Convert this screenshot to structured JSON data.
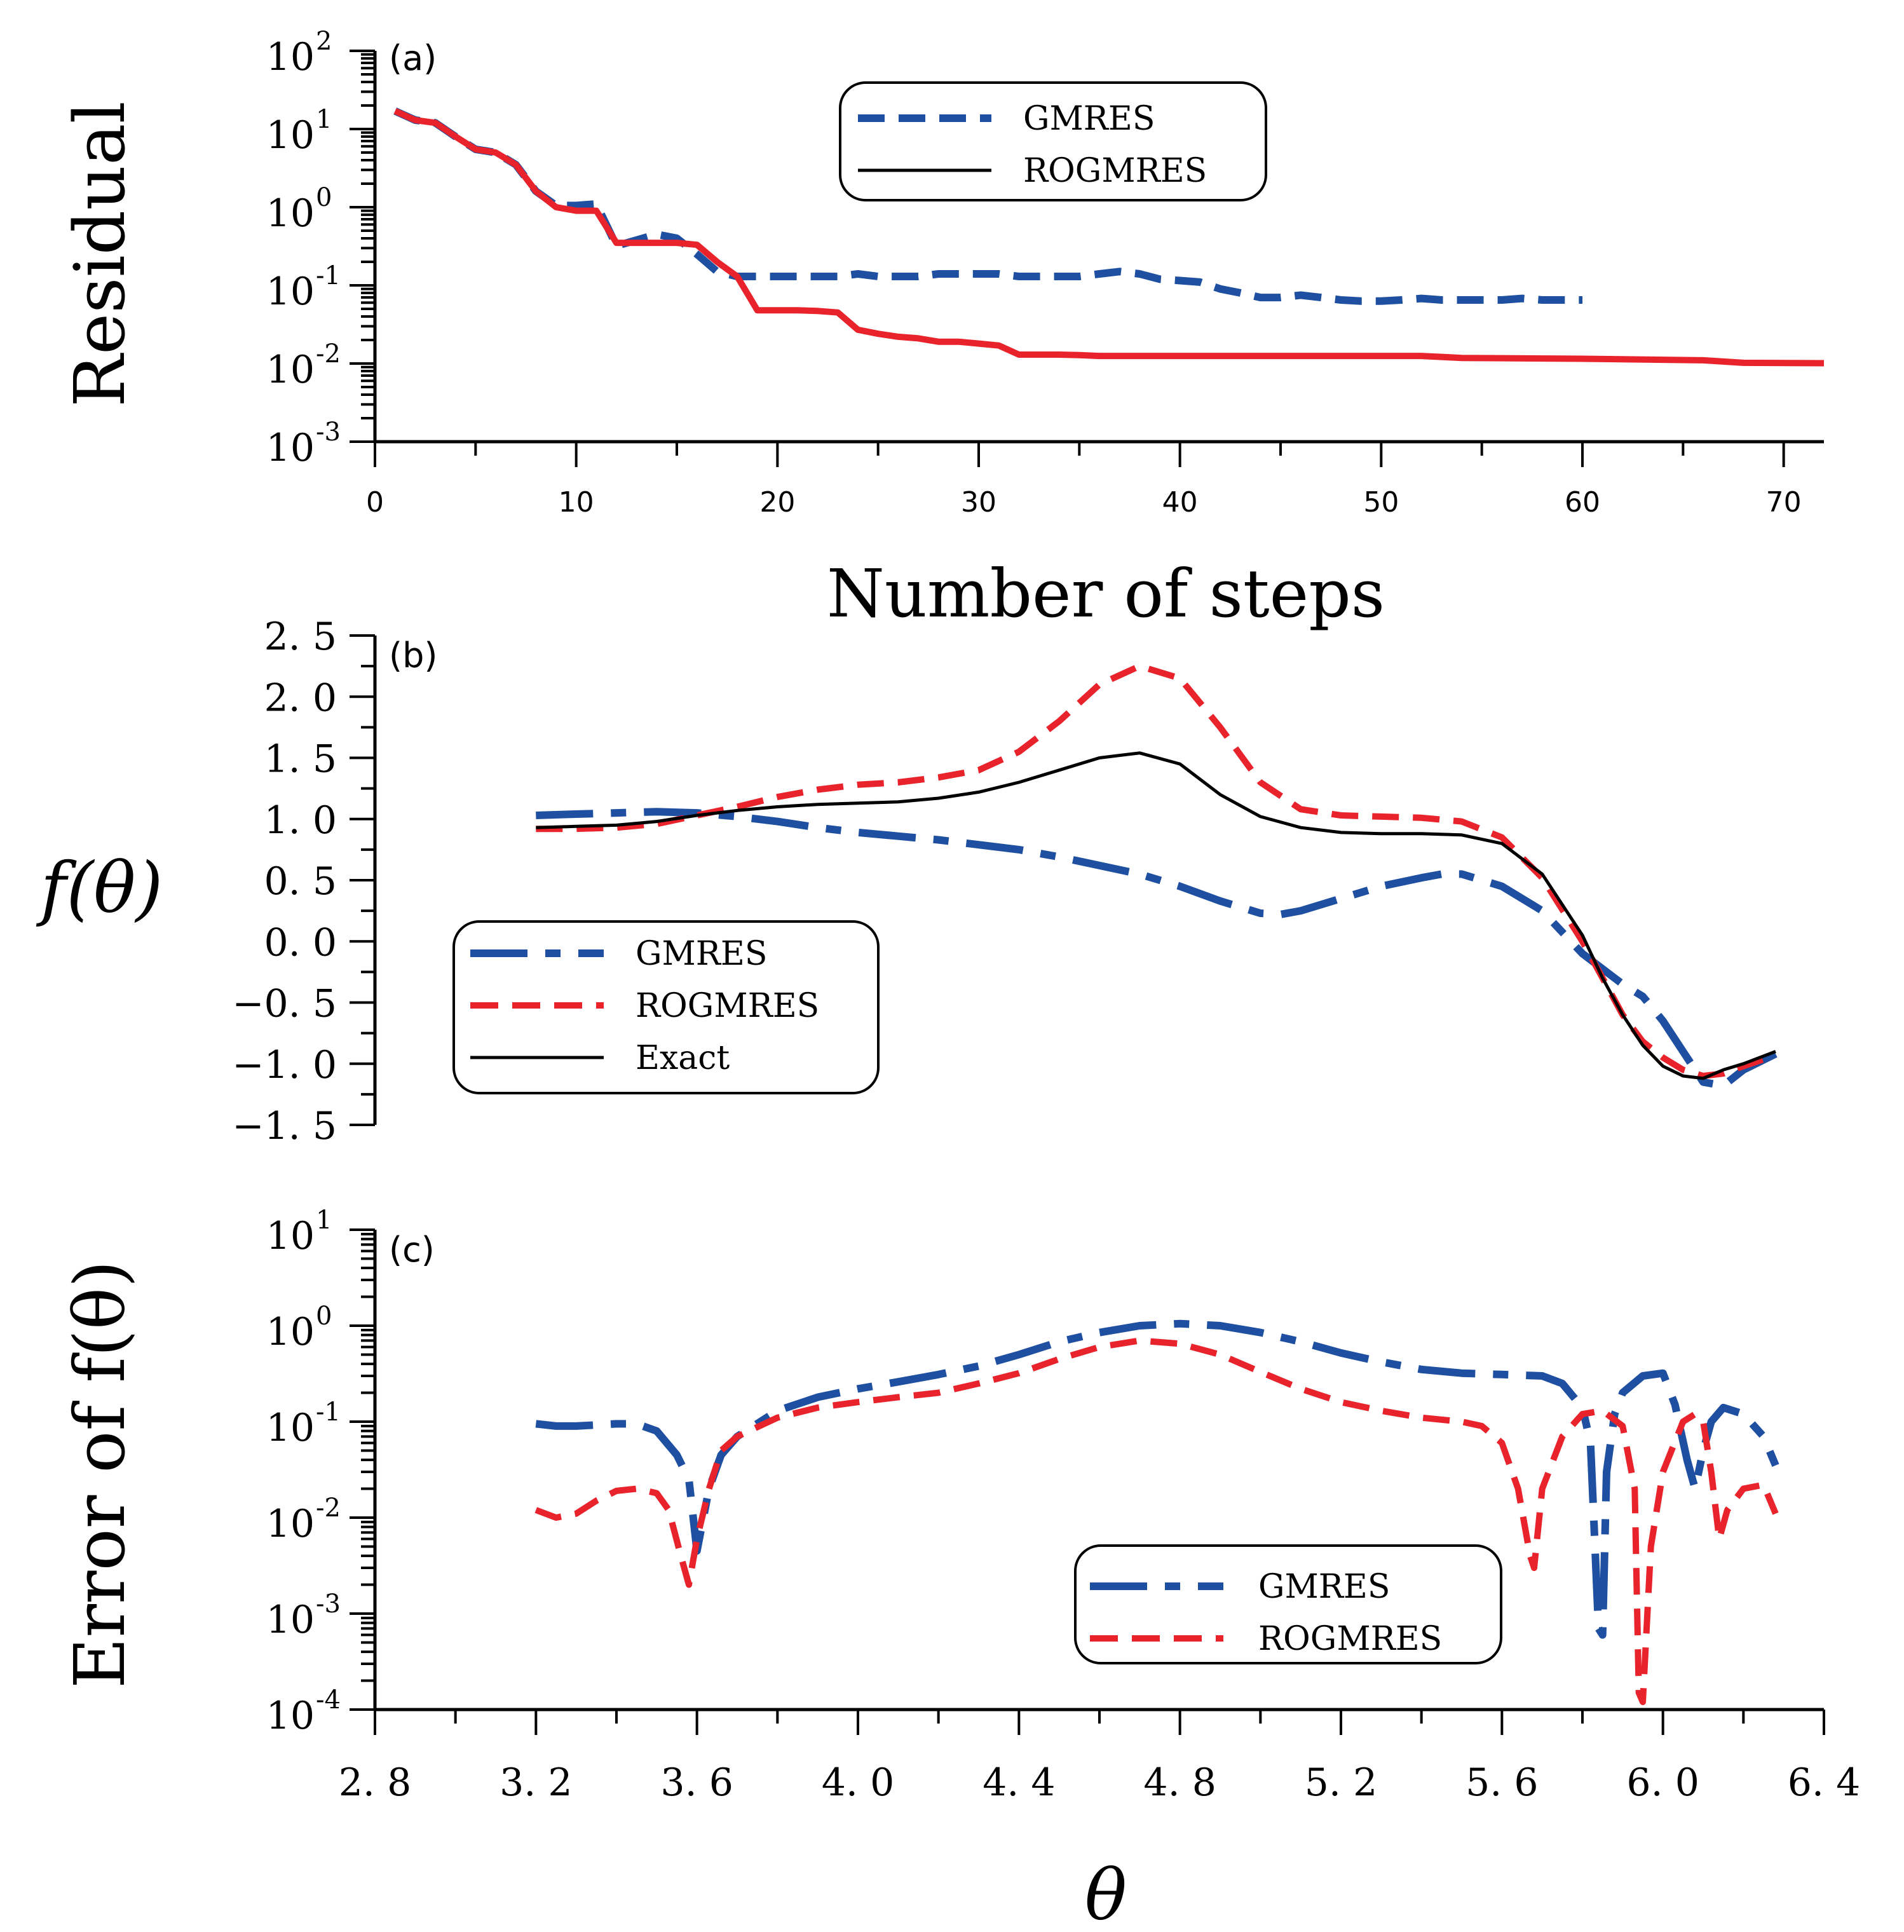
{
  "chart_data": [
    {
      "id": "a",
      "type": "line",
      "panel_label": "(a)",
      "xlabel": "Number of steps",
      "ylabel": "Residual",
      "yscale": "log",
      "xlim": [
        0,
        72
      ],
      "ylim_exp": [
        -3,
        2
      ],
      "x_ticks": [
        0,
        10,
        20,
        30,
        40,
        50,
        60,
        70
      ],
      "y_ticks": [
        {
          "base": "10",
          "exp": "-3",
          "v": -3
        },
        {
          "base": "10",
          "exp": "-2",
          "v": -2
        },
        {
          "base": "10",
          "exp": "-1",
          "v": -1
        },
        {
          "base": "10",
          "exp": "0",
          "v": 0
        },
        {
          "base": "10",
          "exp": "1",
          "v": 1
        },
        {
          "base": "10",
          "exp": "2",
          "v": 2
        }
      ],
      "legend": {
        "position": "top-center",
        "entries": [
          {
            "label": "GMRES",
            "series": "GMRES"
          },
          {
            "label": "ROGMRES",
            "series": "ROGMRES"
          }
        ]
      },
      "series": [
        {
          "name": "GMRES",
          "color": "#1f4fa0",
          "style": "dash",
          "x": [
            1,
            2,
            3,
            4,
            5,
            6,
            7,
            8,
            9,
            10,
            11,
            12,
            13,
            14,
            15,
            16,
            17,
            18,
            19,
            20,
            21,
            22,
            23,
            24,
            25,
            26,
            27,
            28,
            29,
            30,
            31,
            32,
            33,
            34,
            35,
            36,
            37,
            38,
            39,
            40,
            41,
            42,
            43,
            44,
            45,
            46,
            47,
            48,
            49,
            50,
            51,
            52,
            53,
            54,
            55,
            56,
            57,
            58,
            59,
            60
          ],
          "y": [
            17,
            13,
            12,
            8,
            5.5,
            5,
            3.5,
            1.6,
            1.05,
            1.05,
            1.1,
            0.32,
            0.38,
            0.45,
            0.4,
            0.25,
            0.15,
            0.13,
            0.13,
            0.13,
            0.13,
            0.13,
            0.13,
            0.14,
            0.13,
            0.13,
            0.13,
            0.14,
            0.14,
            0.14,
            0.14,
            0.13,
            0.13,
            0.13,
            0.13,
            0.14,
            0.15,
            0.14,
            0.12,
            0.115,
            0.11,
            0.09,
            0.08,
            0.07,
            0.07,
            0.075,
            0.07,
            0.065,
            0.063,
            0.063,
            0.065,
            0.068,
            0.065,
            0.065,
            0.065,
            0.065,
            0.068,
            0.065,
            0.065,
            0.065
          ]
        },
        {
          "name": "ROGMRES",
          "color": "#000000",
          "style": "solid",
          "x": [
            1,
            2,
            3,
            4,
            5,
            6,
            7,
            8,
            9,
            10,
            11,
            12,
            13,
            14,
            15,
            16,
            17,
            18,
            19,
            20,
            21,
            22,
            23,
            24,
            25,
            26,
            27,
            28,
            29,
            30,
            31,
            32,
            33,
            34,
            35,
            36,
            40,
            45,
            50,
            52,
            54,
            56,
            60,
            66,
            68,
            72
          ],
          "y": [
            17,
            13,
            12,
            8,
            5.5,
            5,
            3.5,
            1.6,
            1.0,
            0.9,
            0.9,
            0.35,
            0.35,
            0.35,
            0.35,
            0.33,
            0.2,
            0.13,
            0.048,
            0.048,
            0.048,
            0.047,
            0.045,
            0.027,
            0.024,
            0.022,
            0.021,
            0.019,
            0.019,
            0.018,
            0.017,
            0.013,
            0.013,
            0.013,
            0.0128,
            0.0125,
            0.0125,
            0.0125,
            0.0125,
            0.0125,
            0.0118,
            0.0117,
            0.0115,
            0.011,
            0.0102,
            0.0101
          ]
        }
      ]
    },
    {
      "id": "b",
      "type": "line",
      "panel_label": "(b)",
      "xlabel": "",
      "ylabel": "f(θ)",
      "xlim": [
        2.8,
        6.4
      ],
      "ylim": [
        -1.5,
        2.5
      ],
      "y_ticks": [
        "2. 5",
        "2. 0",
        "1. 5",
        "1. 0",
        "0. 5",
        "0. 0",
        "−0. 5",
        "−1. 0",
        "−1. 5"
      ],
      "y_tick_values": [
        2.5,
        2.0,
        1.5,
        1.0,
        0.5,
        0.0,
        -0.5,
        -1.0,
        -1.5
      ],
      "legend": {
        "position": "lower-left",
        "entries": [
          {
            "label": "GMRES",
            "series": "GMRES"
          },
          {
            "label": "ROGMRES",
            "series": "ROGMRES"
          },
          {
            "label": "Exact",
            "series": "Exact"
          }
        ]
      },
      "series": [
        {
          "name": "GMRES",
          "color": "#1f4fa0",
          "style": "longdash",
          "x": [
            3.2,
            3.3,
            3.4,
            3.5,
            3.6,
            3.7,
            3.8,
            3.9,
            4.0,
            4.1,
            4.2,
            4.3,
            4.4,
            4.5,
            4.6,
            4.7,
            4.8,
            4.9,
            5.0,
            5.05,
            5.1,
            5.2,
            5.3,
            5.4,
            5.45,
            5.5,
            5.6,
            5.7,
            5.8,
            5.9,
            5.95,
            6.0,
            6.05,
            6.1,
            6.15,
            6.2,
            6.28
          ],
          "y": [
            1.03,
            1.04,
            1.05,
            1.06,
            1.05,
            1.02,
            0.98,
            0.93,
            0.89,
            0.86,
            0.83,
            0.79,
            0.75,
            0.69,
            0.62,
            0.55,
            0.45,
            0.33,
            0.23,
            0.22,
            0.25,
            0.35,
            0.45,
            0.52,
            0.55,
            0.55,
            0.45,
            0.25,
            -0.1,
            -0.35,
            -0.45,
            -0.65,
            -0.9,
            -1.15,
            -1.18,
            -1.05,
            -0.92
          ]
        },
        {
          "name": "ROGMRES",
          "color": "#e8232b",
          "style": "dash",
          "x": [
            3.2,
            3.3,
            3.4,
            3.5,
            3.6,
            3.7,
            3.8,
            3.9,
            4.0,
            4.1,
            4.2,
            4.3,
            4.4,
            4.5,
            4.6,
            4.7,
            4.8,
            4.9,
            5.0,
            5.1,
            5.2,
            5.3,
            5.4,
            5.5,
            5.6,
            5.7,
            5.8,
            5.85,
            5.9,
            5.95,
            6.0,
            6.05,
            6.1,
            6.15,
            6.2,
            6.28
          ],
          "y": [
            0.92,
            0.92,
            0.93,
            0.96,
            1.03,
            1.1,
            1.18,
            1.24,
            1.28,
            1.3,
            1.34,
            1.4,
            1.55,
            1.8,
            2.1,
            2.25,
            2.15,
            1.75,
            1.3,
            1.08,
            1.03,
            1.02,
            1.01,
            0.98,
            0.85,
            0.52,
            0.0,
            -0.3,
            -0.6,
            -0.82,
            -0.95,
            -1.05,
            -1.1,
            -1.08,
            -1.02,
            -0.93
          ]
        },
        {
          "name": "Exact",
          "color": "#000000",
          "style": "solid",
          "x": [
            3.2,
            3.3,
            3.4,
            3.5,
            3.6,
            3.7,
            3.8,
            3.9,
            4.0,
            4.1,
            4.2,
            4.3,
            4.4,
            4.5,
            4.6,
            4.7,
            4.8,
            4.9,
            5.0,
            5.1,
            5.2,
            5.3,
            5.4,
            5.5,
            5.6,
            5.7,
            5.8,
            5.85,
            5.9,
            5.95,
            6.0,
            6.05,
            6.1,
            6.15,
            6.2,
            6.28
          ],
          "y": [
            0.93,
            0.94,
            0.95,
            0.98,
            1.03,
            1.07,
            1.1,
            1.12,
            1.13,
            1.14,
            1.17,
            1.22,
            1.3,
            1.4,
            1.5,
            1.54,
            1.45,
            1.2,
            1.02,
            0.93,
            0.89,
            0.88,
            0.88,
            0.87,
            0.8,
            0.55,
            0.05,
            -0.3,
            -0.6,
            -0.85,
            -1.02,
            -1.1,
            -1.12,
            -1.05,
            -1.0,
            -0.9
          ]
        }
      ]
    },
    {
      "id": "c",
      "type": "line",
      "panel_label": "(c)",
      "xlabel": "θ",
      "ylabel": "Error of f(θ)",
      "yscale": "log",
      "xlim": [
        2.8,
        6.4
      ],
      "ylim_exp": [
        -4,
        1
      ],
      "x_ticks": [
        "2. 8",
        "3. 2",
        "3. 6",
        "4. 0",
        "4. 4",
        "4. 8",
        "5. 2",
        "5. 6",
        "6. 0",
        "6. 4"
      ],
      "x_tick_values": [
        2.8,
        3.2,
        3.6,
        4.0,
        4.4,
        4.8,
        5.2,
        5.6,
        6.0,
        6.4
      ],
      "y_ticks": [
        {
          "base": "10",
          "exp": "-4",
          "v": -4
        },
        {
          "base": "10",
          "exp": "-3",
          "v": -3
        },
        {
          "base": "10",
          "exp": "-2",
          "v": -2
        },
        {
          "base": "10",
          "exp": "-1",
          "v": -1
        },
        {
          "base": "10",
          "exp": "0",
          "v": 0
        },
        {
          "base": "10",
          "exp": "1",
          "v": 1
        }
      ],
      "legend": {
        "position": "lower-right",
        "entries": [
          {
            "label": "GMRES",
            "series": "GMRES"
          },
          {
            "label": "ROGMRES",
            "series": "ROGMRES"
          }
        ]
      },
      "series": [
        {
          "name": "GMRES",
          "color": "#1f4fa0",
          "style": "longdash",
          "x": [
            3.2,
            3.25,
            3.3,
            3.4,
            3.45,
            3.5,
            3.55,
            3.58,
            3.6,
            3.63,
            3.66,
            3.7,
            3.8,
            3.9,
            4.0,
            4.1,
            4.2,
            4.3,
            4.4,
            4.5,
            4.6,
            4.7,
            4.8,
            4.9,
            5.0,
            5.1,
            5.2,
            5.3,
            5.4,
            5.5,
            5.6,
            5.7,
            5.75,
            5.8,
            5.82,
            5.84,
            5.85,
            5.86,
            5.88,
            5.9,
            5.95,
            6.0,
            6.03,
            6.06,
            6.08,
            6.1,
            6.12,
            6.15,
            6.2,
            6.25,
            6.28
          ],
          "y": [
            0.095,
            0.09,
            0.09,
            0.095,
            0.095,
            0.08,
            0.045,
            0.025,
            0.0045,
            0.02,
            0.045,
            0.07,
            0.13,
            0.18,
            0.22,
            0.26,
            0.31,
            0.38,
            0.5,
            0.68,
            0.85,
            1.0,
            1.05,
            1.0,
            0.85,
            0.68,
            0.52,
            0.42,
            0.35,
            0.32,
            0.31,
            0.3,
            0.25,
            0.14,
            0.06,
            0.0007,
            0.0006,
            0.03,
            0.12,
            0.2,
            0.3,
            0.32,
            0.15,
            0.04,
            0.02,
            0.05,
            0.1,
            0.14,
            0.12,
            0.07,
            0.035
          ]
        },
        {
          "name": "ROGMRES",
          "color": "#e8232b",
          "style": "dash",
          "x": [
            3.2,
            3.25,
            3.3,
            3.35,
            3.4,
            3.45,
            3.5,
            3.53,
            3.56,
            3.58,
            3.6,
            3.63,
            3.66,
            3.7,
            3.8,
            3.9,
            4.0,
            4.1,
            4.2,
            4.3,
            4.4,
            4.5,
            4.6,
            4.7,
            4.8,
            4.9,
            5.0,
            5.1,
            5.2,
            5.3,
            5.4,
            5.5,
            5.55,
            5.6,
            5.64,
            5.67,
            5.68,
            5.7,
            5.75,
            5.8,
            5.85,
            5.9,
            5.93,
            5.94,
            5.95,
            5.97,
            6.0,
            6.05,
            6.08,
            6.1,
            6.12,
            6.14,
            6.16,
            6.2,
            6.25,
            6.28
          ],
          "y": [
            0.012,
            0.01,
            0.011,
            0.015,
            0.019,
            0.02,
            0.018,
            0.012,
            0.004,
            0.002,
            0.006,
            0.02,
            0.05,
            0.07,
            0.11,
            0.14,
            0.16,
            0.18,
            0.2,
            0.25,
            0.32,
            0.45,
            0.6,
            0.7,
            0.65,
            0.5,
            0.33,
            0.22,
            0.16,
            0.13,
            0.11,
            0.1,
            0.09,
            0.06,
            0.02,
            0.004,
            0.003,
            0.02,
            0.07,
            0.12,
            0.13,
            0.09,
            0.02,
            0.00015,
            0.00012,
            0.005,
            0.03,
            0.1,
            0.12,
            0.1,
            0.03,
            0.006,
            0.012,
            0.02,
            0.022,
            0.011
          ]
        }
      ]
    }
  ]
}
